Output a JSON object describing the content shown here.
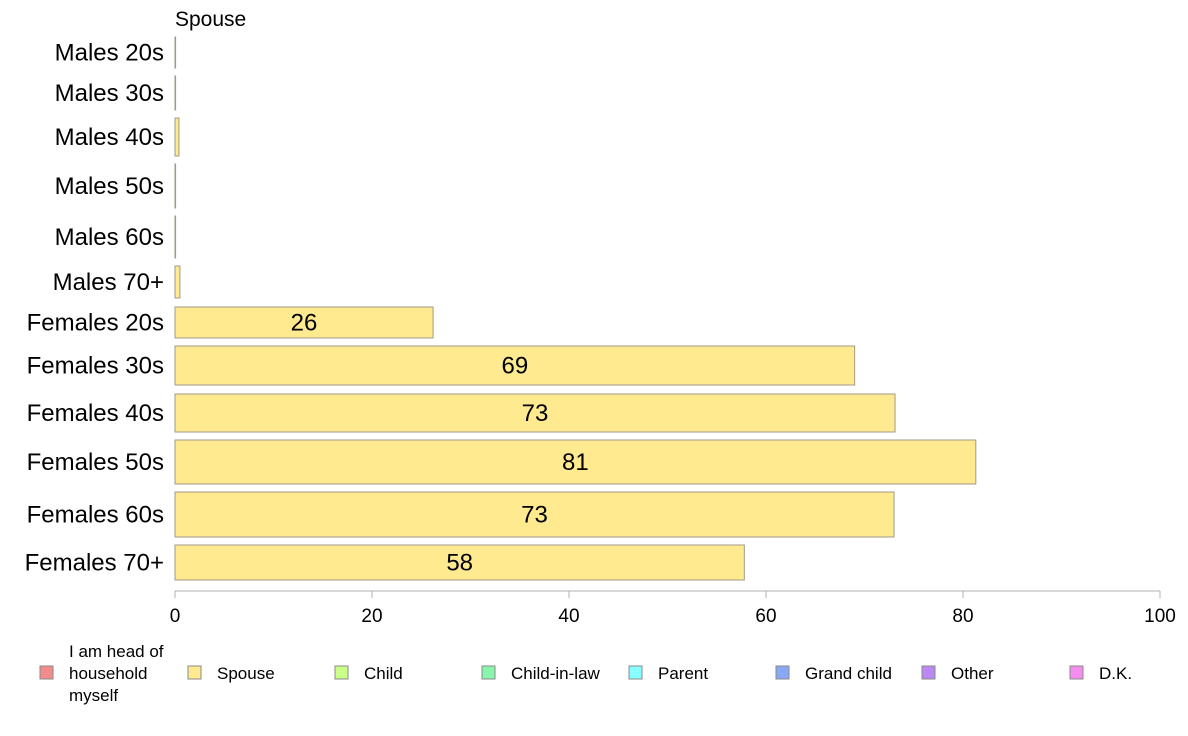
{
  "chart_data": {
    "type": "bar",
    "orientation": "horizontal",
    "title": "Spouse",
    "categories": [
      "Males 20s",
      "Males 30s",
      "Males 40s",
      "Males 50s",
      "Males 60s",
      "Males 70+",
      "Females 20s",
      "Females 30s",
      "Females 40s",
      "Females 50s",
      "Females 60s",
      "Females 70+"
    ],
    "values": [
      0,
      0,
      0.4,
      0,
      0,
      0.5,
      26.2,
      69.0,
      73.1,
      81.3,
      73.0,
      57.8
    ],
    "data_labels": [
      "",
      "",
      "",
      "",
      "",
      "",
      "26",
      "69",
      "73",
      "81",
      "73",
      "58"
    ],
    "xlim": [
      0,
      100
    ],
    "xticks": [
      "0",
      "20",
      "40",
      "60",
      "80",
      "100"
    ],
    "bar_color": "#ffea8f",
    "bar_edge_color": "#a09a88",
    "grid": false,
    "legend_position": "bottom",
    "legend": [
      {
        "label": "I am head of household myself",
        "lines": [
          "I am head of",
          "household",
          "myself"
        ],
        "color": "#f28c8c"
      },
      {
        "label": "Spouse",
        "lines": [
          "Spouse"
        ],
        "color": "#ffea8f"
      },
      {
        "label": "Child",
        "lines": [
          "Child"
        ],
        "color": "#ccff88"
      },
      {
        "label": "Child-in-law",
        "lines": [
          "Child-in-law"
        ],
        "color": "#88f5aa"
      },
      {
        "label": "Parent",
        "lines": [
          "Parent"
        ],
        "color": "#88ffff"
      },
      {
        "label": "Grand child",
        "lines": [
          "Grand child"
        ],
        "color": "#88aaf5"
      },
      {
        "label": "Other",
        "lines": [
          "Other"
        ],
        "color": "#bb88f5"
      },
      {
        "label": "D.K.",
        "lines": [
          "D.K."
        ],
        "color": "#f58cf0"
      }
    ]
  }
}
